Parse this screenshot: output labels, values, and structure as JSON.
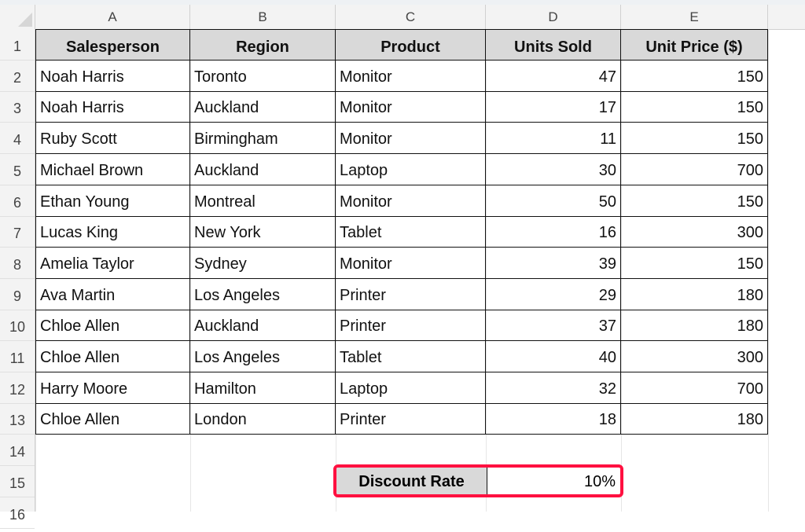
{
  "column_letters": [
    "A",
    "B",
    "C",
    "D",
    "E"
  ],
  "row_numbers": [
    "1",
    "2",
    "3",
    "4",
    "5",
    "6",
    "7",
    "8",
    "9",
    "10",
    "11",
    "12",
    "13",
    "14",
    "15",
    "16"
  ],
  "table": {
    "headers": [
      "Salesperson",
      "Region",
      "Product",
      "Units Sold",
      "Unit Price ($)"
    ],
    "rows": [
      [
        "Noah Harris",
        "Toronto",
        "Monitor",
        "47",
        "150"
      ],
      [
        "Noah Harris",
        "Auckland",
        "Monitor",
        "17",
        "150"
      ],
      [
        "Ruby Scott",
        "Birmingham",
        "Monitor",
        "11",
        "150"
      ],
      [
        "Michael Brown",
        "Auckland",
        "Laptop",
        "30",
        "700"
      ],
      [
        "Ethan Young",
        "Montreal",
        "Monitor",
        "50",
        "150"
      ],
      [
        "Lucas King",
        "New York",
        "Tablet",
        "16",
        "300"
      ],
      [
        "Amelia Taylor",
        "Sydney",
        "Monitor",
        "39",
        "150"
      ],
      [
        "Ava Martin",
        "Los Angeles",
        "Printer",
        "29",
        "180"
      ],
      [
        "Chloe Allen",
        "Auckland",
        "Printer",
        "37",
        "180"
      ],
      [
        "Chloe Allen",
        "Los Angeles",
        "Tablet",
        "40",
        "300"
      ],
      [
        "Harry Moore",
        "Hamilton",
        "Laptop",
        "32",
        "700"
      ],
      [
        "Chloe Allen",
        "London",
        "Printer",
        "18",
        "180"
      ]
    ]
  },
  "discount": {
    "label": "Discount Rate",
    "value": "10%",
    "highlight_color": "#ff1040"
  }
}
